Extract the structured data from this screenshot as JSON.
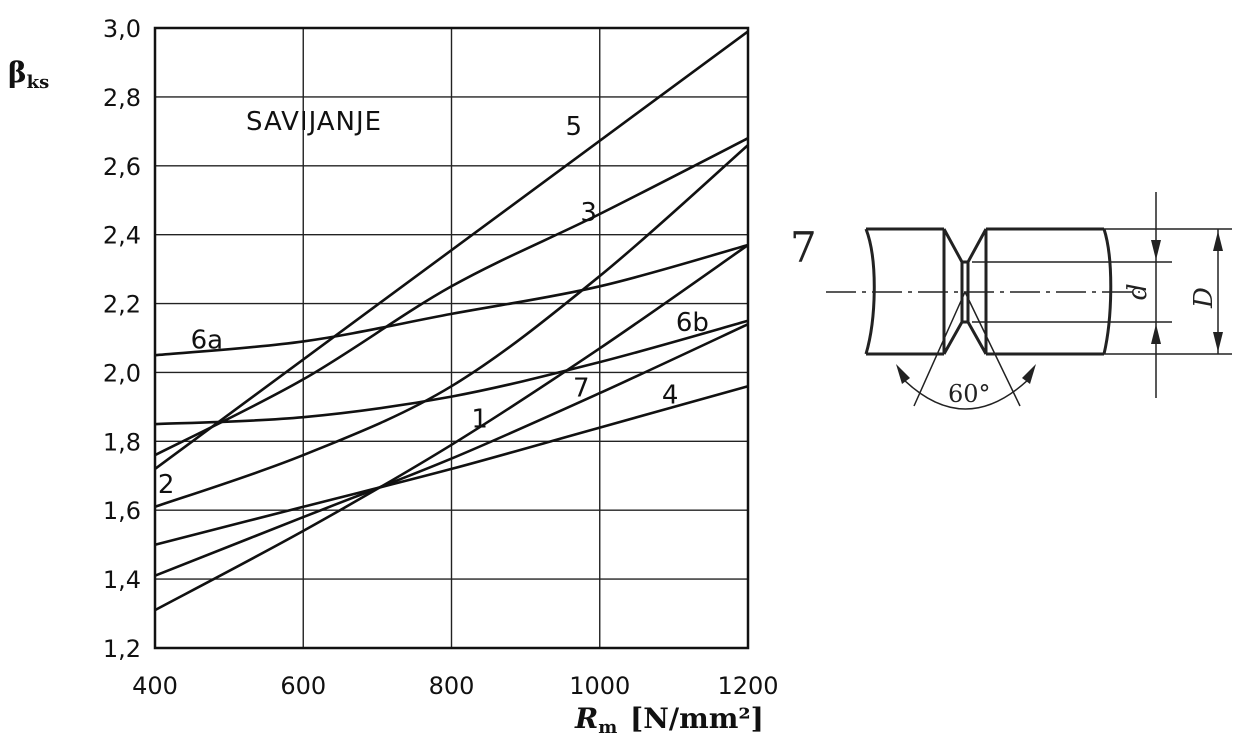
{
  "chart_data": {
    "type": "line",
    "annotation": "SAVIJANJE",
    "ylabel": {
      "main": "β",
      "sub": "ks"
    },
    "xlabel": {
      "main": "R",
      "sub": "m",
      "unit": "[N/mm²]"
    },
    "xlim": [
      400,
      1200
    ],
    "ylim": [
      1.2,
      3.0
    ],
    "x_ticks": [
      {
        "value": 400,
        "label": "400"
      },
      {
        "value": 600,
        "label": "600"
      },
      {
        "value": 800,
        "label": "800"
      },
      {
        "value": 1000,
        "label": "1000"
      },
      {
        "value": 1200,
        "label": "1200"
      }
    ],
    "y_ticks": [
      {
        "value": 1.2,
        "label": "1,2"
      },
      {
        "value": 1.4,
        "label": "1,4"
      },
      {
        "value": 1.6,
        "label": "1,6"
      },
      {
        "value": 1.8,
        "label": "1,8"
      },
      {
        "value": 2.0,
        "label": "2,0"
      },
      {
        "value": 2.2,
        "label": "2,2"
      },
      {
        "value": 2.4,
        "label": "2,4"
      },
      {
        "value": 2.6,
        "label": "2,6"
      },
      {
        "value": 2.8,
        "label": "2,8"
      },
      {
        "value": 3.0,
        "label": "3,0"
      }
    ],
    "grid": true,
    "series": [
      {
        "name": "5",
        "label_at": [
          965,
          2.69
        ],
        "points": [
          [
            400,
            1.72
          ],
          [
            1200,
            2.99
          ]
        ]
      },
      {
        "name": "3",
        "label_at": [
          985,
          2.44
        ],
        "points": [
          [
            400,
            1.76
          ],
          [
            600,
            1.98
          ],
          [
            800,
            2.25
          ],
          [
            1000,
            2.46
          ],
          [
            1200,
            2.68
          ]
        ]
      },
      {
        "name": "6a",
        "label_at": [
          470,
          2.07
        ],
        "points": [
          [
            400,
            2.05
          ],
          [
            600,
            2.09
          ],
          [
            800,
            2.17
          ],
          [
            1000,
            2.25
          ],
          [
            1200,
            2.37
          ]
        ]
      },
      {
        "name": "6b",
        "label_at": [
          1125,
          2.12
        ],
        "points": [
          [
            400,
            1.85
          ],
          [
            600,
            1.87
          ],
          [
            800,
            1.93
          ],
          [
            1000,
            2.03
          ],
          [
            1200,
            2.15
          ]
        ]
      },
      {
        "name": "2",
        "label_at": [
          415,
          1.65
        ],
        "points": [
          [
            400,
            1.61
          ],
          [
            600,
            1.76
          ],
          [
            800,
            1.96
          ],
          [
            1000,
            2.28
          ],
          [
            1200,
            2.66
          ]
        ]
      },
      {
        "name": "1",
        "label_at": [
          838,
          1.84
        ],
        "points": [
          [
            400,
            1.31
          ],
          [
            600,
            1.54
          ],
          [
            800,
            1.79
          ],
          [
            1000,
            2.07
          ],
          [
            1200,
            2.37
          ]
        ]
      },
      {
        "name": "7",
        "label_at": [
          975,
          1.93
        ],
        "points": [
          [
            400,
            1.41
          ],
          [
            600,
            1.58
          ],
          [
            800,
            1.75
          ],
          [
            1000,
            1.94
          ],
          [
            1200,
            2.14
          ]
        ]
      },
      {
        "name": "4",
        "label_at": [
          1095,
          1.91
        ],
        "points": [
          [
            400,
            1.5
          ],
          [
            600,
            1.61
          ],
          [
            800,
            1.72
          ],
          [
            1000,
            1.84
          ],
          [
            1200,
            1.96
          ]
        ]
      }
    ]
  },
  "sketch": {
    "case_label": "7",
    "angle_label": "60°",
    "inner_dim_label": "d",
    "outer_dim_label": "D"
  }
}
